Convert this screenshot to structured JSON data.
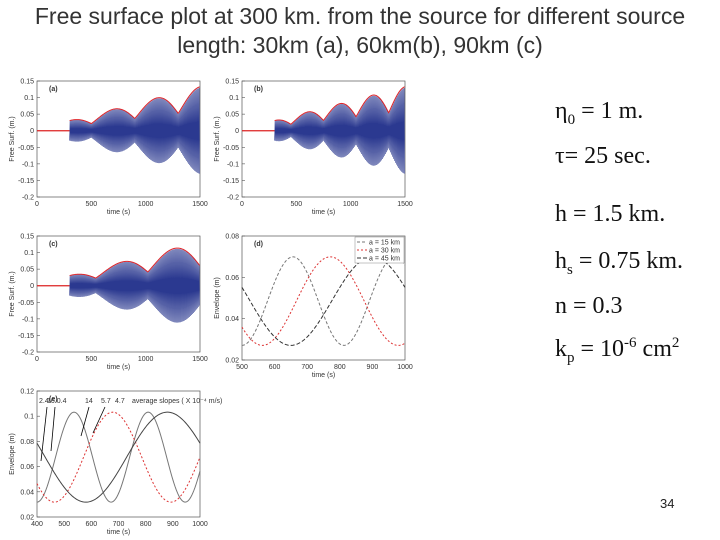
{
  "title": "Free surface plot at 300 km. from the source for different source length: 30km (a), 60km(b), 90km (c)",
  "panels": [
    {
      "label": "(a)",
      "ylabel": "Free Surf. (m.)",
      "xlabel": "time (s)",
      "yticks": [
        "0.15",
        "0.1",
        "0.05",
        "0",
        "-0.05",
        "-0.1",
        "-0.15",
        "-0.2"
      ],
      "xticks": [
        "0",
        "500",
        "1000",
        "1500"
      ]
    },
    {
      "label": "(b)",
      "ylabel": "Free Surf. (m.)",
      "xlabel": "time (s)",
      "yticks": [
        "0.15",
        "0.1",
        "0.05",
        "0",
        "-0.05",
        "-0.1",
        "-0.15",
        "-0.2"
      ],
      "xticks": [
        "0",
        "500",
        "1000",
        "1500"
      ]
    },
    {
      "label": "(c)",
      "ylabel": "Free Surf. (m.)",
      "xlabel": "time (s)",
      "yticks": [
        "0.15",
        "0.1",
        "0.05",
        "0",
        "-0.05",
        "-0.1",
        "-0.15",
        "-0.2"
      ],
      "xticks": [
        "0",
        "500",
        "1000",
        "1500"
      ]
    },
    {
      "label": "(d)",
      "ylabel": "Envelope (m)",
      "xlabel": "time (s)",
      "yticks": [
        "0.08",
        "0.06",
        "0.04",
        "0.02"
      ],
      "xticks": [
        "500",
        "600",
        "700",
        "800",
        "900",
        "1000"
      ],
      "legend": [
        "a = 15 km",
        "a = 30 km",
        "a = 45 km"
      ]
    },
    {
      "label": "(e)",
      "ylabel": "Envelope (m)",
      "xlabel": "time (s)",
      "yticks": [
        "0.12",
        "0.1",
        "0.08",
        "0.06",
        "0.04",
        "0.02"
      ],
      "xticks": [
        "400",
        "500",
        "600",
        "700",
        "800",
        "900",
        "1000"
      ],
      "annotations": [
        "2.4",
        "16.0.4",
        "14",
        "5.7",
        "4.7",
        "average slopes ( X 10⁻⁴ m/s)"
      ]
    }
  ],
  "params": [
    [
      {
        "t": "η"
      },
      {
        "t": "0",
        "s": "sub"
      },
      {
        "t": " = 1 m."
      }
    ],
    [
      {
        "t": "τ= 25 sec."
      }
    ],
    [
      {
        "t": "h = 1.5 km."
      }
    ],
    [
      {
        "t": "h"
      },
      {
        "t": "s",
        "s": "sub"
      },
      {
        "t": " = 0.75 km."
      }
    ],
    [
      {
        "t": "n = 0.3"
      }
    ],
    [
      {
        "t": "k"
      },
      {
        "t": "p",
        "s": "sub"
      },
      {
        "t": " = 10"
      },
      {
        "t": "-6",
        "s": "sup"
      },
      {
        "t": " cm"
      },
      {
        "t": "2",
        "s": "sup"
      }
    ]
  ],
  "page_number": "34"
}
